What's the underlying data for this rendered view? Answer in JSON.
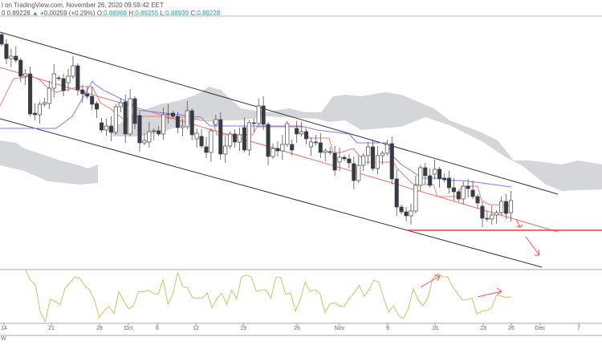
{
  "header": {
    "line1": "l on TradingView.com, November 26, 2020 09:59:42 EET",
    "symbol_price": "0 0.89228",
    "change_icon": "triangle-up-icon",
    "change_arrow": "▲",
    "change": "+0.00259 (+0.29%)",
    "o_label": "O:",
    "o": "0.88969",
    "h_label": "H:",
    "h": "0.89255",
    "l_label": "L:",
    "l": "0.88939",
    "c_label": "C:",
    "c": "0.89228"
  },
  "x_axis": {
    "ticks": [
      "14",
      "21",
      "28",
      "Oct",
      "6",
      "12",
      "19",
      "26",
      "Nov",
      "9",
      "16",
      "23",
      "26",
      "Dec",
      "7"
    ]
  },
  "footer_label": "W",
  "colors": {
    "up_body": "#ffffff",
    "down_body": "#363a45",
    "tenkan": "#f47c7c",
    "kijun": "#7b7bff",
    "cloud": "#d5d6da",
    "support": "#ff3333",
    "oscillator": "#c8c66a",
    "teal": "#26a69a"
  },
  "chart_data": {
    "type": "candlestick",
    "candles_oc": [
      [
        0.9145,
        0.9133
      ],
      [
        0.9133,
        0.9115
      ],
      [
        0.9115,
        0.9118
      ],
      [
        0.9118,
        0.9113
      ],
      [
        0.9113,
        0.9093
      ],
      [
        0.9093,
        0.9096
      ],
      [
        0.9096,
        0.9046
      ],
      [
        0.9047,
        0.9045
      ],
      [
        0.9045,
        0.9058
      ],
      [
        0.9058,
        0.906
      ],
      [
        0.9059,
        0.9078
      ],
      [
        0.9078,
        0.9096
      ],
      [
        0.9091,
        0.909
      ],
      [
        0.909,
        0.9075
      ],
      [
        0.9085,
        0.9093
      ],
      [
        0.9093,
        0.9106
      ],
      [
        0.9106,
        0.9076
      ],
      [
        0.9076,
        0.9071
      ],
      [
        0.9071,
        0.9068
      ],
      [
        0.9068,
        0.9058
      ],
      [
        0.9059,
        0.9052
      ],
      [
        0.9035,
        0.9026
      ],
      [
        0.9026,
        0.9031
      ],
      [
        0.9031,
        0.9023
      ],
      [
        0.9023,
        0.9055
      ],
      [
        0.9055,
        0.906
      ],
      [
        0.9061,
        0.9021
      ],
      [
        0.9021,
        0.9065
      ],
      [
        0.9065,
        0.9034
      ],
      [
        0.9044,
        0.901
      ],
      [
        0.901,
        0.9013
      ],
      [
        0.9011,
        0.9024
      ],
      [
        0.9024,
        0.9025
      ],
      [
        0.9025,
        0.9021
      ],
      [
        0.9021,
        0.9045
      ],
      [
        0.9045,
        0.9046
      ],
      [
        0.9047,
        0.9043
      ],
      [
        0.9043,
        0.9029
      ],
      [
        0.9029,
        0.9031
      ],
      [
        0.903,
        0.905
      ],
      [
        0.905,
        0.902
      ],
      [
        0.9015,
        0.9022
      ],
      [
        0.9018,
        0.9006
      ],
      [
        0.9005,
        0.8998
      ],
      [
        0.8998,
        0.9025
      ],
      [
        0.9033,
        0.9039
      ],
      [
        0.9039,
        0.8996
      ],
      [
        0.8996,
        0.9006
      ],
      [
        0.9006,
        0.9021
      ],
      [
        0.9021,
        0.9011
      ],
      [
        0.9011,
        0.902
      ],
      [
        0.9029,
        0.9001
      ],
      [
        0.9001,
        0.9035
      ],
      [
        0.9035,
        0.9034
      ],
      [
        0.9034,
        0.9056
      ],
      [
        0.9056,
        0.9033
      ],
      [
        0.9033,
        0.8993
      ],
      [
        0.8993,
        0.9003
      ],
      [
        0.9003,
        0.9
      ],
      [
        0.9,
        0.9008
      ],
      [
        0.9008,
        0.9034
      ],
      [
        0.9008,
        0.9001
      ],
      [
        0.9028,
        0.9021
      ],
      [
        0.9021,
        0.9024
      ],
      [
        0.9024,
        0.9015
      ],
      [
        0.9005,
        0.9011
      ],
      [
        0.9011,
        0.901
      ],
      [
        0.901,
        0.8998
      ],
      [
        0.8998,
        0.9
      ],
      [
        0.8999,
        0.8998
      ],
      [
        0.8997,
        0.8976
      ],
      [
        0.8986,
        0.8992
      ],
      [
        0.8992,
        0.899
      ],
      [
        0.899,
        0.8985
      ],
      [
        0.8984,
        0.8963
      ],
      [
        0.8963,
        0.8982
      ],
      [
        0.8982,
        0.8994
      ],
      [
        0.8994,
        0.9005
      ],
      [
        0.9005,
        0.8978
      ],
      [
        0.8978,
        0.8994
      ],
      [
        0.8994,
        0.8997
      ],
      [
        0.8997,
        0.9008
      ],
      [
        0.9009,
        0.8965
      ],
      [
        0.8965,
        0.893
      ],
      [
        0.893,
        0.8924
      ],
      [
        0.8924,
        0.8919
      ],
      [
        0.8919,
        0.8925
      ],
      [
        0.8925,
        0.8957
      ],
      [
        0.8957,
        0.8979
      ],
      [
        0.8979,
        0.8969
      ],
      [
        0.8969,
        0.8957
      ],
      [
        0.8971,
        0.8977
      ],
      [
        0.8977,
        0.8965
      ],
      [
        0.8966,
        0.8964
      ],
      [
        0.8966,
        0.8954
      ],
      [
        0.8954,
        0.8949
      ],
      [
        0.8949,
        0.894
      ],
      [
        0.894,
        0.8956
      ],
      [
        0.8956,
        0.8953
      ],
      [
        0.8951,
        0.8943
      ],
      [
        0.8943,
        0.8935
      ],
      [
        0.8931,
        0.8916
      ],
      [
        0.8916,
        0.8915
      ],
      [
        0.8915,
        0.892
      ],
      [
        0.892,
        0.8923
      ],
      [
        0.8923,
        0.8937
      ],
      [
        0.8937,
        0.8922
      ],
      [
        0.8923,
        0.8938
      ]
    ],
    "support_level": 0.8901,
    "oscillator": [
      96,
      77,
      69,
      18,
      0,
      42,
      38,
      32,
      62,
      72,
      84,
      81,
      68,
      60,
      41,
      8,
      20,
      29,
      15,
      56,
      39,
      24,
      30,
      57,
      56,
      59,
      53,
      51,
      78,
      33,
      51,
      92,
      66,
      63,
      45,
      44,
      44,
      54,
      26,
      44,
      53,
      32,
      60,
      42,
      84,
      87,
      84,
      57,
      59,
      59,
      44,
      83,
      83,
      51,
      54,
      20,
      42,
      74,
      57,
      60,
      53,
      17,
      33,
      36,
      29,
      29,
      44,
      54,
      68,
      47,
      60,
      78,
      74,
      44,
      18,
      30,
      12,
      6,
      24,
      62,
      41,
      30,
      45,
      81,
      90,
      84,
      84,
      66,
      53,
      41,
      41,
      44,
      14,
      20,
      21,
      26,
      50,
      48,
      45,
      47
    ],
    "oscillator_range": [
      0,
      100
    ]
  }
}
